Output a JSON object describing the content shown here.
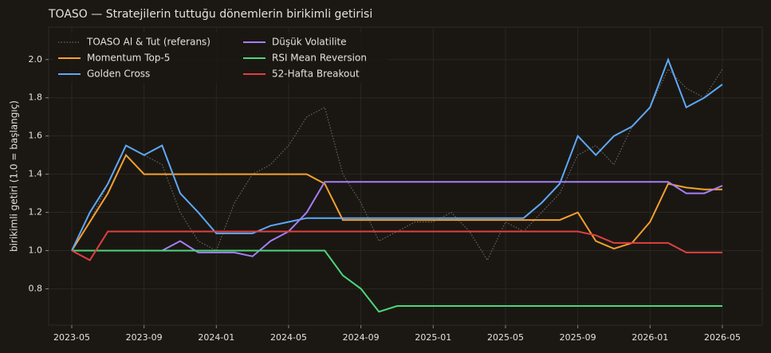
{
  "chart_data": {
    "type": "line",
    "title": "TOASO — Stratejilerin tuttuğu dönemlerin birikimli getirisi",
    "y_label": "birikimli getiri (1.0 = başlangıç)",
    "categories": [
      "2023-05",
      null,
      null,
      null,
      "2023-09",
      null,
      null,
      null,
      "2024-01",
      null,
      null,
      null,
      "2024-05",
      null,
      null,
      null,
      "2024-09",
      null,
      null,
      null,
      "2025-01",
      null,
      null,
      null,
      "2025-05",
      null,
      null,
      null,
      "2025-09",
      null,
      null,
      null,
      "2026-01",
      null,
      null,
      null,
      "2026-05"
    ],
    "ylim": [
      0.61,
      2.17
    ],
    "yticks": [
      {
        "value": 0.8,
        "label": "0.8"
      },
      {
        "value": 1.0,
        "label": "1.0"
      },
      {
        "value": 1.2,
        "label": "1.2"
      },
      {
        "value": 1.4,
        "label": "1.4"
      },
      {
        "value": 1.6,
        "label": "1.6"
      },
      {
        "value": 1.8,
        "label": "1.8"
      },
      {
        "value": 2.0,
        "label": "2.0"
      }
    ],
    "grid": true,
    "legend": "upper left",
    "series": [
      {
        "name": "TOASO Al & Tut (referans)",
        "color": "#6b6560",
        "dashed": true,
        "values": [
          1.0,
          1.15,
          1.35,
          1.55,
          1.5,
          1.45,
          1.2,
          1.05,
          1.0,
          1.25,
          1.4,
          1.45,
          1.55,
          1.7,
          1.75,
          1.4,
          1.25,
          1.05,
          1.1,
          1.15,
          1.15,
          1.2,
          1.1,
          0.95,
          1.15,
          1.1,
          1.2,
          1.3,
          1.5,
          1.55,
          1.45,
          1.65,
          1.75,
          1.95,
          1.85,
          1.8,
          1.95
        ]
      },
      {
        "name": "Momentum Top-5",
        "color": "#f5a030",
        "values": [
          1.0,
          1.15,
          1.3,
          1.5,
          1.4,
          1.4,
          1.4,
          1.4,
          1.4,
          1.4,
          1.4,
          1.4,
          1.4,
          1.4,
          1.35,
          1.16,
          1.16,
          1.16,
          1.16,
          1.16,
          1.16,
          1.16,
          1.16,
          1.16,
          1.16,
          1.16,
          1.16,
          1.16,
          1.2,
          1.05,
          1.01,
          1.04,
          1.15,
          1.35,
          1.33,
          1.32,
          1.32
        ]
      },
      {
        "name": "Golden Cross",
        "color": "#5fa8f5",
        "values": [
          1.0,
          1.2,
          1.35,
          1.55,
          1.5,
          1.55,
          1.3,
          1.2,
          1.09,
          1.09,
          1.09,
          1.13,
          1.15,
          1.17,
          1.17,
          1.17,
          1.17,
          1.17,
          1.17,
          1.17,
          1.17,
          1.17,
          1.17,
          1.17,
          1.17,
          1.17,
          1.25,
          1.35,
          1.6,
          1.5,
          1.6,
          1.65,
          1.75,
          2.0,
          1.75,
          1.8,
          1.87
        ]
      },
      {
        "name": "Düşük Volatilite",
        "color": "#a67ff5",
        "values": [
          1.0,
          1.0,
          1.0,
          1.0,
          1.0,
          1.0,
          1.05,
          0.99,
          0.99,
          0.99,
          0.97,
          1.05,
          1.1,
          1.2,
          1.36,
          1.36,
          1.36,
          1.36,
          1.36,
          1.36,
          1.36,
          1.36,
          1.36,
          1.36,
          1.36,
          1.36,
          1.36,
          1.36,
          1.36,
          1.36,
          1.36,
          1.36,
          1.36,
          1.36,
          1.3,
          1.3,
          1.34
        ]
      },
      {
        "name": "RSI Mean Reversion",
        "color": "#4ed67a",
        "values": [
          1.0,
          1.0,
          1.0,
          1.0,
          1.0,
          1.0,
          1.0,
          1.0,
          1.0,
          1.0,
          1.0,
          1.0,
          1.0,
          1.0,
          1.0,
          0.87,
          0.8,
          0.68,
          0.71,
          0.71,
          0.71,
          0.71,
          0.71,
          0.71,
          0.71,
          0.71,
          0.71,
          0.71,
          0.71,
          0.71,
          0.71,
          0.71,
          0.71,
          0.71,
          0.71,
          0.71,
          0.71
        ]
      },
      {
        "name": "52-Hafta Breakout",
        "color": "#e04040",
        "values": [
          1.0,
          0.95,
          1.1,
          1.1,
          1.1,
          1.1,
          1.1,
          1.1,
          1.1,
          1.1,
          1.1,
          1.1,
          1.1,
          1.1,
          1.1,
          1.1,
          1.1,
          1.1,
          1.1,
          1.1,
          1.1,
          1.1,
          1.1,
          1.1,
          1.1,
          1.1,
          1.1,
          1.1,
          1.1,
          1.08,
          1.04,
          1.04,
          1.04,
          1.04,
          0.99,
          0.99,
          0.99
        ]
      }
    ]
  }
}
